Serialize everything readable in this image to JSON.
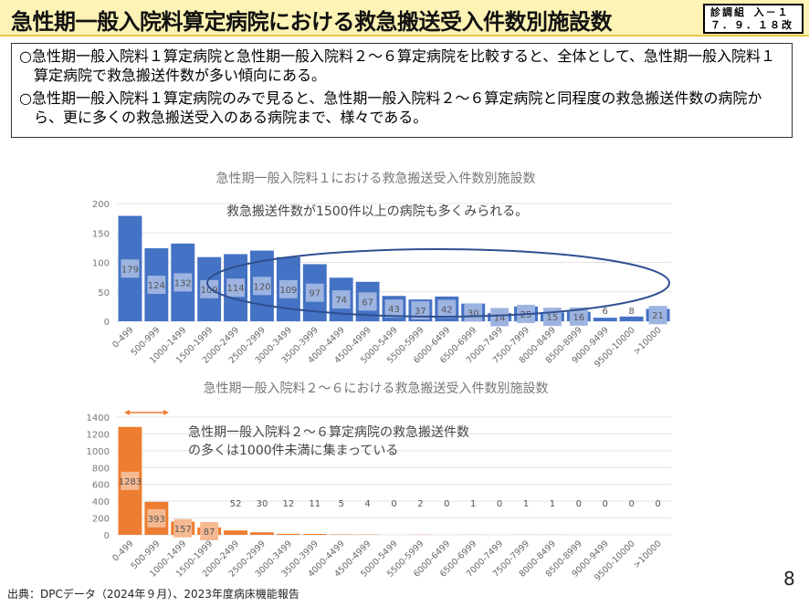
{
  "header": {
    "title": "急性期一般入院料算定病院における救急搬送受入件数別施設数",
    "badge_line1": "診調組 入－１",
    "badge_line2": "７．９．１８改"
  },
  "summary": [
    "○急性期一般入院料１算定病院と急性期一般入院料２～６算定病院を比較すると、全体として、急性期一般入院料１算定病院で救急搬送件数が多い傾向にある。",
    "○急性期一般入院料１算定病院のみで見ると、急性期一般入院料２～６算定病院と同程度の救急搬送件数の病院から、更に多くの救急搬送受入のある病院まで、様々である。"
  ],
  "chart_data": [
    {
      "type": "bar",
      "title": "急性期一般入院料１における救急搬送受入件数別施設数",
      "annotation": "救急搬送件数が1500件以上の病院も多くみられる。",
      "categories": [
        "0-499",
        "500-999",
        "1000-1499",
        "1500-1999",
        "2000-2499",
        "2500-2999",
        "3000-3499",
        "3500-3999",
        "4000-4499",
        "4500-4999",
        "5000-5499",
        "5500-5999",
        "6000-6499",
        "6500-6999",
        "7000-7499",
        "7500-7999",
        "8000-8499",
        "8500-8999",
        "9000-9499",
        "9500-10000",
        ">10000"
      ],
      "values": [
        179,
        124,
        132,
        109,
        114,
        120,
        109,
        97,
        74,
        67,
        43,
        37,
        42,
        30,
        14,
        25,
        15,
        16,
        6,
        8,
        21
      ],
      "ylim": [
        0,
        200
      ],
      "yticks": [
        0,
        50,
        100,
        150,
        200
      ],
      "grid": true,
      "color": "#4472c4",
      "label_bg": "#9db3e0"
    },
    {
      "type": "bar",
      "title": "急性期一般入院料２～６における救急搬送受入件数別施設数",
      "annotation": "急性期一般入院料２～６算定病院の救急搬送件数\nの多くは1000件未満に集まっている",
      "categories": [
        "0-499",
        "500-999",
        "1000-1499",
        "1500-1999",
        "2000-2499",
        "2500-2999",
        "3000-3499",
        "3500-3999",
        "4000-4499",
        "4500-4999",
        "5000-5499",
        "5500-5999",
        "6000-6499",
        "6500-6999",
        "7000-7499",
        "7500-7999",
        "8000-8499",
        "8500-8999",
        "9000-9499",
        "9500-10000",
        ">10000"
      ],
      "values": [
        1283,
        393,
        157,
        87,
        52,
        30,
        12,
        11,
        5,
        4,
        0,
        2,
        0,
        1,
        0,
        1,
        1,
        0,
        0,
        0,
        0
      ],
      "ylim": [
        0,
        1400
      ],
      "yticks": [
        0,
        200,
        400,
        600,
        800,
        1000,
        1200,
        1400
      ],
      "grid": true,
      "color": "#ed7d31",
      "label_bg": "#f5b993"
    }
  ],
  "footer": {
    "source": "出典：DPCデータ（2024年９月）、2023年度病床機能報告",
    "page": "8"
  }
}
